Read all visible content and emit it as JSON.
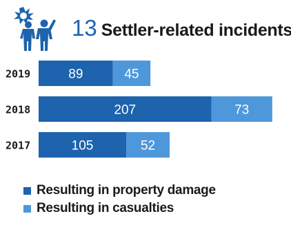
{
  "header": {
    "count": "13",
    "title": "Settler-related incidents",
    "icon": "settlers-attack-icon"
  },
  "colors": {
    "primary": "#1d63ad",
    "secondary": "#4e97db",
    "text": "#1a1a1a"
  },
  "chart_data": {
    "type": "bar",
    "orientation": "horizontal",
    "stacked": true,
    "categories": [
      "2019",
      "2018",
      "2017"
    ],
    "series": [
      {
        "name": "Resulting in property damage",
        "values": [
          89,
          207,
          105
        ],
        "color": "#1d63ad"
      },
      {
        "name": "Resulting in casualties",
        "values": [
          45,
          73,
          52
        ],
        "color": "#4e97db"
      }
    ],
    "title": "13 Settler-related incidents",
    "xlabel": "",
    "ylabel": "",
    "grid": false,
    "legend_position": "bottom-left",
    "data_labels": true
  }
}
